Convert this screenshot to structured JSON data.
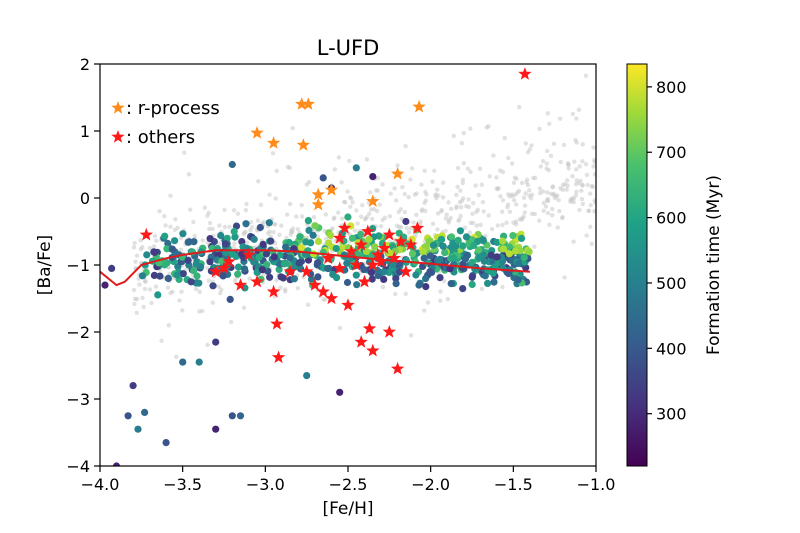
{
  "chart_data": {
    "type": "scatter",
    "title": "L-UFD",
    "xlabel": "[Fe/H]",
    "ylabel": "[Ba/Fe]",
    "xlim": [
      -4.0,
      -1.0
    ],
    "ylim": [
      -4,
      2
    ],
    "xticks": [
      -4.0,
      -3.5,
      -3.0,
      -2.5,
      -2.0,
      -1.5,
      -1.0
    ],
    "xtick_labels": [
      "−4.0",
      "−3.5",
      "−3.0",
      "−2.5",
      "−2.0",
      "−1.5",
      "−1.0"
    ],
    "yticks": [
      -4,
      -3,
      -2,
      -1,
      0,
      1,
      2
    ],
    "ytick_labels": [
      "−4",
      "−3",
      "−2",
      "−1",
      "0",
      "1",
      "2"
    ],
    "grid": false,
    "legend": {
      "placement": "top-left",
      "entries": [
        {
          "label": ": r-process",
          "color": "#ff8c1a",
          "marker": "star"
        },
        {
          "label": ": others",
          "color": "#ff1a1a",
          "marker": "star"
        }
      ]
    },
    "colorbar": {
      "label": "Formation time (Myr)",
      "range": [
        220,
        835
      ],
      "ticks": [
        300,
        400,
        500,
        600,
        700,
        800
      ],
      "colors": [
        "#440154",
        "#3b528b",
        "#21918c",
        "#5ec962",
        "#fde725"
      ]
    },
    "background_points_color": "#c8c8c8",
    "mean_line": {
      "color": "#e31a1c",
      "x": [
        -4.0,
        -3.9,
        -3.85,
        -3.75,
        -3.6,
        -3.5,
        -3.3,
        -3.0,
        -2.8,
        -2.6,
        -2.3,
        -2.0,
        -1.7,
        -1.4
      ],
      "y": [
        -1.1,
        -1.3,
        -1.25,
        -1.0,
        -0.9,
        -0.85,
        -0.78,
        -0.78,
        -0.8,
        -0.85,
        -0.92,
        -0.98,
        -1.05,
        -1.1
      ]
    },
    "r_process_stars": {
      "x": [
        -3.05,
        -2.95,
        -2.78,
        -2.74,
        -2.77,
        -2.68,
        -2.6,
        -2.68,
        -2.07,
        -2.2,
        -2.35
      ],
      "y": [
        0.97,
        0.82,
        1.4,
        1.4,
        0.79,
        0.05,
        0.12,
        -0.1,
        1.36,
        0.36,
        -0.05
      ]
    },
    "other_stars": {
      "x": [
        -1.43,
        -3.72,
        -2.93,
        -2.92,
        -2.37,
        -2.35,
        -2.25,
        -2.2,
        -2.42,
        -3.3,
        -3.22,
        -3.15,
        -3.05,
        -2.95,
        -2.85,
        -2.7,
        -2.62,
        -2.55,
        -2.52,
        -2.48,
        -2.45,
        -2.42,
        -2.38,
        -2.35,
        -2.32,
        -2.28,
        -2.25,
        -2.22,
        -2.18,
        -2.15,
        -2.12,
        -2.08,
        -2.6,
        -2.5,
        -2.4,
        -2.3,
        -3.25,
        -3.1,
        -2.75,
        -2.65,
        -2.55
      ],
      "y": [
        1.85,
        -0.55,
        -1.88,
        -2.38,
        -1.95,
        -2.28,
        -2.0,
        -2.55,
        -2.15,
        -1.1,
        -0.95,
        -1.3,
        -1.25,
        -1.4,
        -1.1,
        -1.3,
        -0.9,
        -0.6,
        -0.45,
        -0.8,
        -1.0,
        -0.7,
        -0.5,
        -1.0,
        -0.85,
        -0.75,
        -0.55,
        -0.9,
        -0.65,
        -1.1,
        -0.7,
        -0.45,
        -1.5,
        -1.6,
        -1.25,
        -0.95,
        -1.05,
        -0.85,
        -1.1,
        -1.4,
        -1.05
      ]
    },
    "circles_outliers": {
      "x": [
        -3.9,
        -3.8,
        -3.83,
        -3.73,
        -3.77,
        -3.97,
        -3.93,
        -3.6,
        -3.5,
        -3.4,
        -3.3,
        -3.3,
        -3.2,
        -3.15,
        -2.75,
        -2.55,
        -2.6,
        -2.65,
        -3.2,
        -2.45,
        -2.35,
        -2.15
      ],
      "y": [
        -4.0,
        -2.8,
        -3.25,
        -3.2,
        -3.45,
        -1.3,
        -1.05,
        -3.65,
        -2.45,
        -2.45,
        -3.45,
        -2.15,
        -3.25,
        -3.25,
        -2.65,
        -2.9,
        0.15,
        0.3,
        0.5,
        0.45,
        0.32,
        -0.35
      ]
    }
  }
}
